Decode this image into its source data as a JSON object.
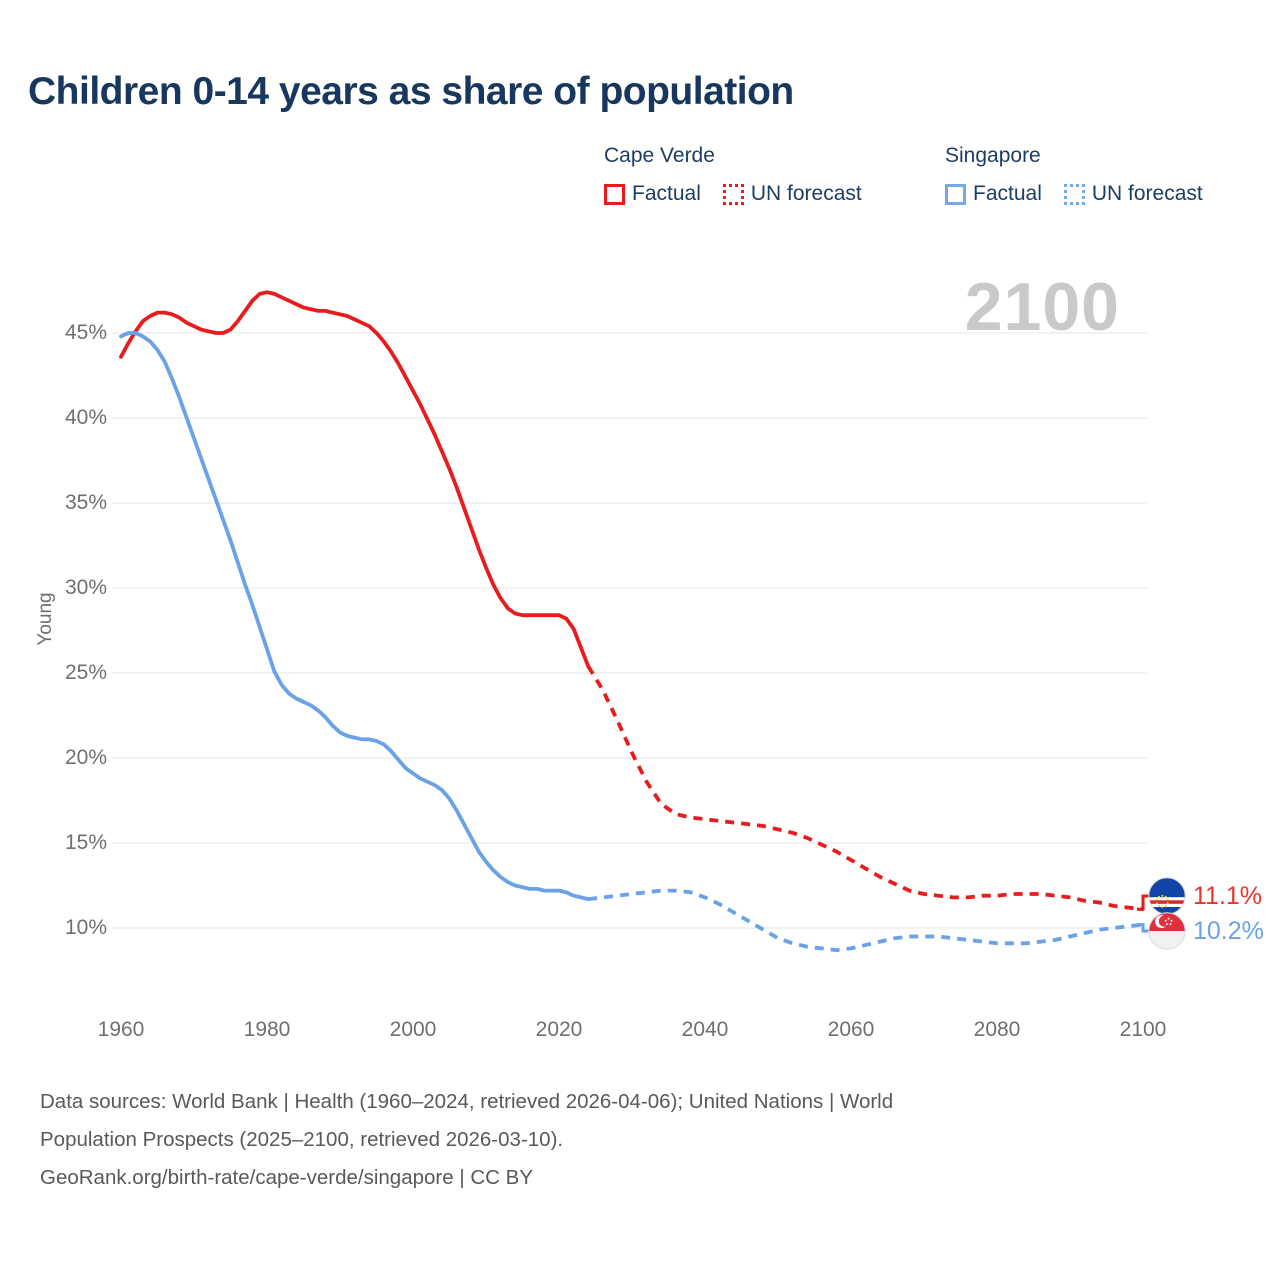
{
  "title": "Children 0-14 years as share of population",
  "watermark": "2100",
  "colors": {
    "cape_verde_red": "#e81c1c",
    "singapore_blue": "#6aa2e8",
    "title_navy": "#17375e",
    "legend_navy": "#1d3d63",
    "axis_gray": "#6f6f6f",
    "watermark_gray": "#c9c9c9",
    "gridline_gray": "#e9e9e9",
    "footer_gray": "#595959"
  },
  "legend": {
    "groups": [
      {
        "name": "Cape Verde",
        "color": "#e81c1c",
        "items": [
          {
            "label": "Factual",
            "style": "solid"
          },
          {
            "label": "UN forecast",
            "style": "dotted"
          }
        ]
      },
      {
        "name": "Singapore",
        "color": "#6aa2e8",
        "items": [
          {
            "label": "Factual",
            "style": "solid"
          },
          {
            "label": "UN forecast",
            "style": "dotted"
          }
        ]
      }
    ]
  },
  "y_axis": {
    "label": "Young",
    "ticks": [
      {
        "v": 45,
        "label": "45%"
      },
      {
        "v": 40,
        "label": "40%"
      },
      {
        "v": 35,
        "label": "35%"
      },
      {
        "v": 30,
        "label": "30%"
      },
      {
        "v": 25,
        "label": "25%"
      },
      {
        "v": 20,
        "label": "20%"
      },
      {
        "v": 15,
        "label": "15%"
      },
      {
        "v": 10,
        "label": "10%"
      }
    ]
  },
  "x_axis": {
    "ticks": [
      {
        "v": 1960,
        "label": "1960"
      },
      {
        "v": 1980,
        "label": "1980"
      },
      {
        "v": 2000,
        "label": "2000"
      },
      {
        "v": 2020,
        "label": "2020"
      },
      {
        "v": 2040,
        "label": "2040"
      },
      {
        "v": 2060,
        "label": "2060"
      },
      {
        "v": 2080,
        "label": "2080"
      },
      {
        "v": 2100,
        "label": "2100"
      }
    ]
  },
  "end_labels": [
    {
      "series": "Cape Verde",
      "value": "11.1%",
      "flag": "cape-verde-flag",
      "color": "#e8342a"
    },
    {
      "series": "Singapore",
      "value": "10.2%",
      "flag": "singapore-flag",
      "color": "#6aa2e8"
    }
  ],
  "footer": {
    "lines": [
      "Data sources: World Bank | Health (1960–2024, retrieved 2026-04-06); United Nations | World",
      "Population Prospects (2025–2100, retrieved 2026-03-10).",
      "GeoRank.org/birth-rate/cape-verde/singapore | CC BY"
    ]
  },
  "chart_data": {
    "type": "line",
    "title": "Children 0-14 years as share of population",
    "ylabel": "Young",
    "x_range": [
      1960,
      2100
    ],
    "y_gridlines": [
      10,
      15,
      20,
      25,
      30,
      35,
      40,
      45
    ],
    "legend_position": "top-right",
    "grid": "horizontal-only",
    "series": [
      {
        "name": "Cape Verde Factual",
        "color": "#e81c1c",
        "style": "solid",
        "points": [
          [
            1960,
            43.6
          ],
          [
            1961,
            44.4
          ],
          [
            1962,
            45.1
          ],
          [
            1963,
            45.7
          ],
          [
            1964,
            46.0
          ],
          [
            1965,
            46.2
          ],
          [
            1966,
            46.2
          ],
          [
            1967,
            46.1
          ],
          [
            1968,
            45.9
          ],
          [
            1969,
            45.6
          ],
          [
            1970,
            45.4
          ],
          [
            1971,
            45.2
          ],
          [
            1972,
            45.1
          ],
          [
            1973,
            45.0
          ],
          [
            1974,
            45.0
          ],
          [
            1975,
            45.2
          ],
          [
            1976,
            45.7
          ],
          [
            1977,
            46.3
          ],
          [
            1978,
            46.9
          ],
          [
            1979,
            47.3
          ],
          [
            1980,
            47.4
          ],
          [
            1981,
            47.3
          ],
          [
            1982,
            47.1
          ],
          [
            1983,
            46.9
          ],
          [
            1984,
            46.7
          ],
          [
            1985,
            46.5
          ],
          [
            1986,
            46.4
          ],
          [
            1987,
            46.3
          ],
          [
            1988,
            46.3
          ],
          [
            1989,
            46.2
          ],
          [
            1990,
            46.1
          ],
          [
            1991,
            46.0
          ],
          [
            1992,
            45.8
          ],
          [
            1993,
            45.6
          ],
          [
            1994,
            45.4
          ],
          [
            1995,
            45.0
          ],
          [
            1996,
            44.5
          ],
          [
            1997,
            43.9
          ],
          [
            1998,
            43.2
          ],
          [
            1999,
            42.4
          ],
          [
            2000,
            41.6
          ],
          [
            2001,
            40.8
          ],
          [
            2002,
            39.9
          ],
          [
            2003,
            39.0
          ],
          [
            2004,
            38.0
          ],
          [
            2005,
            37.0
          ],
          [
            2006,
            35.9
          ],
          [
            2007,
            34.7
          ],
          [
            2008,
            33.5
          ],
          [
            2009,
            32.3
          ],
          [
            2010,
            31.2
          ],
          [
            2011,
            30.2
          ],
          [
            2012,
            29.4
          ],
          [
            2013,
            28.8
          ],
          [
            2014,
            28.5
          ],
          [
            2015,
            28.4
          ],
          [
            2016,
            28.4
          ],
          [
            2017,
            28.4
          ],
          [
            2018,
            28.4
          ],
          [
            2019,
            28.4
          ],
          [
            2020,
            28.4
          ],
          [
            2021,
            28.2
          ],
          [
            2022,
            27.6
          ],
          [
            2023,
            26.5
          ],
          [
            2024,
            25.4
          ]
        ]
      },
      {
        "name": "Cape Verde UN forecast",
        "color": "#e81c1c",
        "style": "dashed",
        "points": [
          [
            2024,
            25.4
          ],
          [
            2025,
            24.7
          ],
          [
            2026,
            24.0
          ],
          [
            2028,
            22.2
          ],
          [
            2030,
            20.3
          ],
          [
            2032,
            18.6
          ],
          [
            2034,
            17.3
          ],
          [
            2036,
            16.7
          ],
          [
            2038,
            16.5
          ],
          [
            2040,
            16.4
          ],
          [
            2042,
            16.3
          ],
          [
            2044,
            16.2
          ],
          [
            2046,
            16.1
          ],
          [
            2048,
            16.0
          ],
          [
            2050,
            15.8
          ],
          [
            2052,
            15.6
          ],
          [
            2054,
            15.3
          ],
          [
            2056,
            14.9
          ],
          [
            2058,
            14.5
          ],
          [
            2060,
            14.0
          ],
          [
            2062,
            13.5
          ],
          [
            2064,
            13.0
          ],
          [
            2066,
            12.6
          ],
          [
            2068,
            12.2
          ],
          [
            2070,
            12.0
          ],
          [
            2072,
            11.9
          ],
          [
            2074,
            11.8
          ],
          [
            2076,
            11.8
          ],
          [
            2078,
            11.9
          ],
          [
            2080,
            11.9
          ],
          [
            2082,
            12.0
          ],
          [
            2084,
            12.0
          ],
          [
            2086,
            12.0
          ],
          [
            2088,
            11.9
          ],
          [
            2090,
            11.8
          ],
          [
            2092,
            11.6
          ],
          [
            2094,
            11.5
          ],
          [
            2096,
            11.3
          ],
          [
            2098,
            11.2
          ],
          [
            2100,
            11.1
          ]
        ]
      },
      {
        "name": "Singapore Factual",
        "color": "#6aa2e8",
        "style": "solid",
        "points": [
          [
            1960,
            44.8
          ],
          [
            1961,
            45.0
          ],
          [
            1962,
            45.0
          ],
          [
            1963,
            44.8
          ],
          [
            1964,
            44.5
          ],
          [
            1965,
            44.0
          ],
          [
            1966,
            43.3
          ],
          [
            1967,
            42.3
          ],
          [
            1968,
            41.2
          ],
          [
            1969,
            40.0
          ],
          [
            1970,
            38.8
          ],
          [
            1971,
            37.6
          ],
          [
            1972,
            36.4
          ],
          [
            1973,
            35.2
          ],
          [
            1974,
            34.0
          ],
          [
            1975,
            32.8
          ],
          [
            1976,
            31.5
          ],
          [
            1977,
            30.2
          ],
          [
            1978,
            29.0
          ],
          [
            1979,
            27.7
          ],
          [
            1980,
            26.4
          ],
          [
            1981,
            25.1
          ],
          [
            1982,
            24.3
          ],
          [
            1983,
            23.8
          ],
          [
            1984,
            23.5
          ],
          [
            1985,
            23.3
          ],
          [
            1986,
            23.1
          ],
          [
            1987,
            22.8
          ],
          [
            1988,
            22.4
          ],
          [
            1989,
            21.9
          ],
          [
            1990,
            21.5
          ],
          [
            1991,
            21.3
          ],
          [
            1992,
            21.2
          ],
          [
            1993,
            21.1
          ],
          [
            1994,
            21.1
          ],
          [
            1995,
            21.0
          ],
          [
            1996,
            20.8
          ],
          [
            1997,
            20.4
          ],
          [
            1998,
            19.9
          ],
          [
            1999,
            19.4
          ],
          [
            2000,
            19.1
          ],
          [
            2001,
            18.8
          ],
          [
            2002,
            18.6
          ],
          [
            2003,
            18.4
          ],
          [
            2004,
            18.1
          ],
          [
            2005,
            17.6
          ],
          [
            2006,
            16.9
          ],
          [
            2007,
            16.1
          ],
          [
            2008,
            15.3
          ],
          [
            2009,
            14.5
          ],
          [
            2010,
            13.9
          ],
          [
            2011,
            13.4
          ],
          [
            2012,
            13.0
          ],
          [
            2013,
            12.7
          ],
          [
            2014,
            12.5
          ],
          [
            2015,
            12.4
          ],
          [
            2016,
            12.3
          ],
          [
            2017,
            12.3
          ],
          [
            2018,
            12.2
          ],
          [
            2019,
            12.2
          ],
          [
            2020,
            12.2
          ],
          [
            2021,
            12.1
          ],
          [
            2022,
            11.9
          ],
          [
            2023,
            11.8
          ],
          [
            2024,
            11.7
          ]
        ]
      },
      {
        "name": "Singapore UN forecast",
        "color": "#6aa2e8",
        "style": "dashed",
        "points": [
          [
            2024,
            11.7
          ],
          [
            2026,
            11.8
          ],
          [
            2028,
            11.9
          ],
          [
            2030,
            12.0
          ],
          [
            2032,
            12.1
          ],
          [
            2034,
            12.2
          ],
          [
            2036,
            12.2
          ],
          [
            2038,
            12.1
          ],
          [
            2040,
            11.8
          ],
          [
            2042,
            11.4
          ],
          [
            2044,
            10.9
          ],
          [
            2046,
            10.4
          ],
          [
            2048,
            9.9
          ],
          [
            2050,
            9.4
          ],
          [
            2052,
            9.1
          ],
          [
            2054,
            8.9
          ],
          [
            2056,
            8.8
          ],
          [
            2058,
            8.7
          ],
          [
            2060,
            8.8
          ],
          [
            2062,
            9.0
          ],
          [
            2064,
            9.2
          ],
          [
            2066,
            9.4
          ],
          [
            2068,
            9.5
          ],
          [
            2070,
            9.5
          ],
          [
            2072,
            9.5
          ],
          [
            2074,
            9.4
          ],
          [
            2076,
            9.3
          ],
          [
            2078,
            9.2
          ],
          [
            2080,
            9.1
          ],
          [
            2082,
            9.1
          ],
          [
            2084,
            9.1
          ],
          [
            2086,
            9.2
          ],
          [
            2088,
            9.3
          ],
          [
            2090,
            9.5
          ],
          [
            2092,
            9.7
          ],
          [
            2094,
            9.9
          ],
          [
            2096,
            10.0
          ],
          [
            2098,
            10.1
          ],
          [
            2100,
            10.2
          ]
        ]
      }
    ],
    "end_markers": [
      {
        "series": "Cape Verde",
        "year": 2100,
        "value": 11.1,
        "label": "11.1%"
      },
      {
        "series": "Singapore",
        "year": 2100,
        "value": 10.2,
        "label": "10.2%"
      }
    ]
  }
}
